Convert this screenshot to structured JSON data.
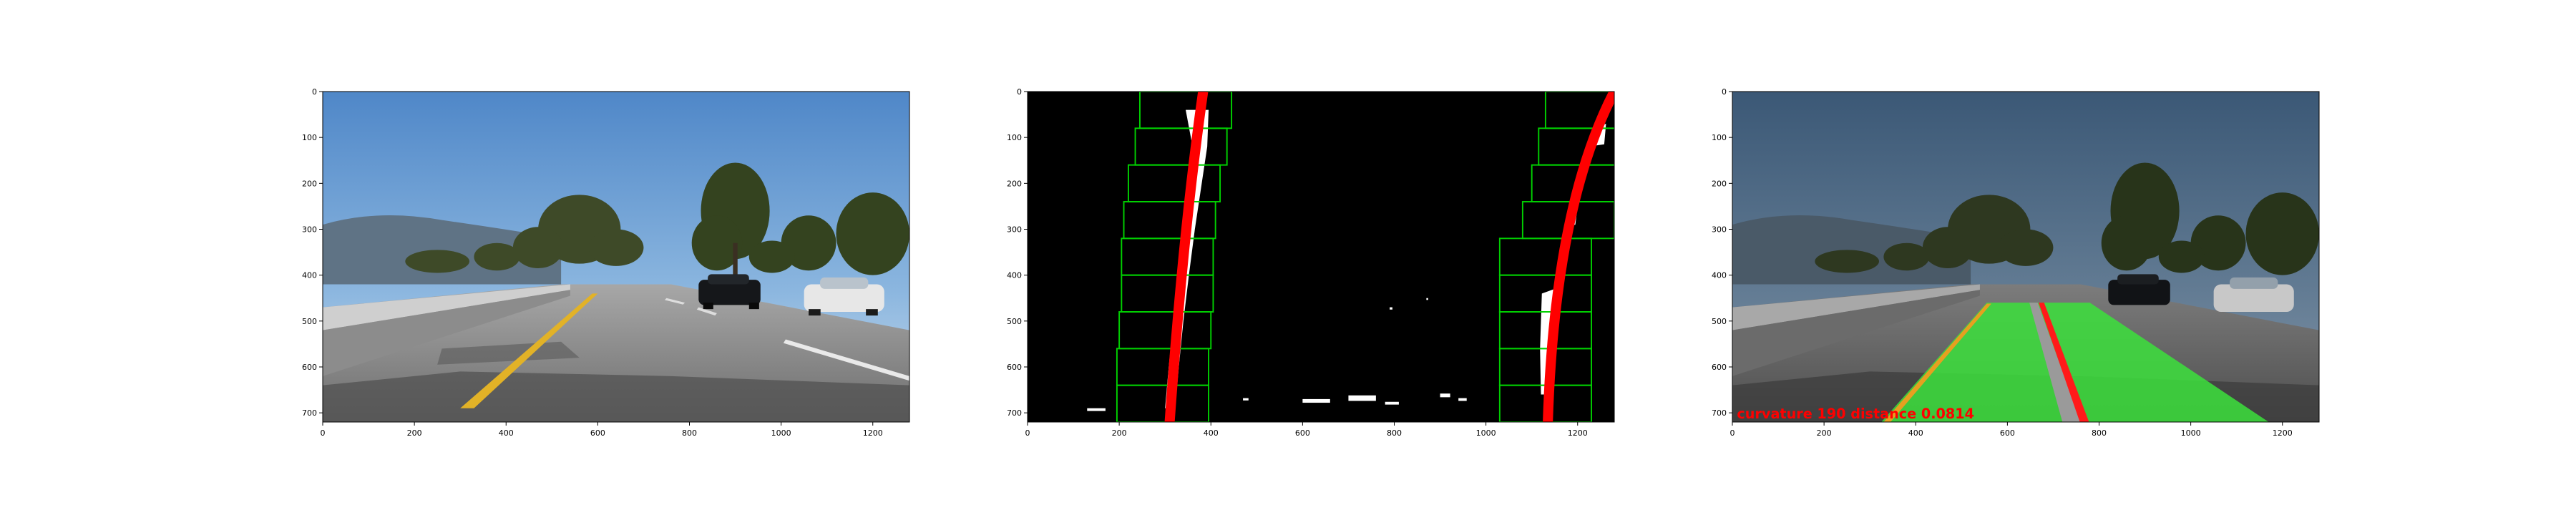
{
  "figure": {
    "panels": [
      {
        "name": "original-road-photo",
        "x_ticks": [
          "0",
          "200",
          "400",
          "600",
          "800",
          "1000",
          "1200"
        ],
        "y_ticks": [
          "0",
          "100",
          "200",
          "300",
          "400",
          "500",
          "600",
          "700"
        ]
      },
      {
        "name": "binary-lane-search",
        "x_ticks": [
          "0",
          "200",
          "400",
          "600",
          "800",
          "1000",
          "1200"
        ],
        "y_ticks": [
          "0",
          "100",
          "200",
          "300",
          "400",
          "500",
          "600",
          "700"
        ]
      },
      {
        "name": "lane-overlay-result",
        "x_ticks": [
          "0",
          "200",
          "400",
          "600",
          "800",
          "1000",
          "1200"
        ],
        "y_ticks": [
          "0",
          "100",
          "200",
          "300",
          "400",
          "500",
          "600",
          "700"
        ],
        "overlay_text": "curvature 190 distance 0.0814"
      }
    ],
    "colors": {
      "lane_fit": "#ff0000",
      "search_window": "#00d000",
      "lane_fill": "#3ce13c",
      "overlay_text": "#ff0000"
    }
  }
}
